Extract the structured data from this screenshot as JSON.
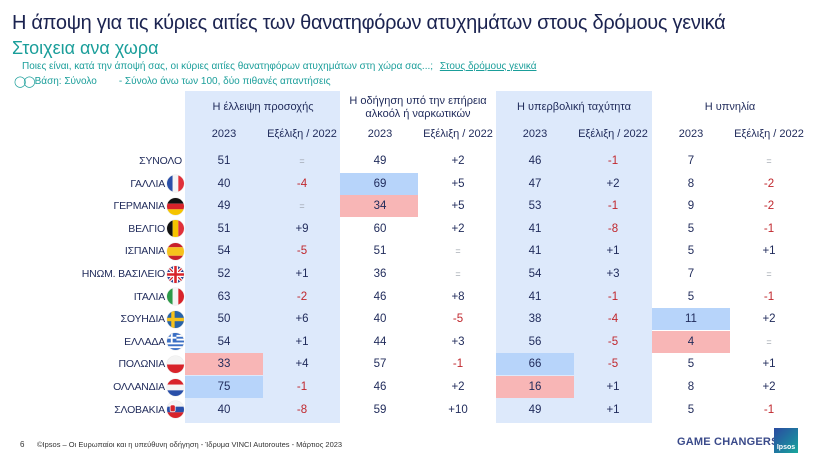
{
  "header": {
    "title": "Η άποψη για τις κύριες αιτίες των θανατηφόρων ατυχημάτων στους δρόμους γενικά",
    "subtitle": "Στοιχεια ανα χωρα",
    "question": "Ποιες είναι, κατά την άποψή σας, οι κύριες αιτίες θανατηφόρων ατυχημάτων στη χώρα σας...;",
    "question_link": "Στους δρόμους γενικά",
    "base_label": "Βάση: Σύνολο",
    "base_note": "- Σύνολο άνω των 100, δύο  πιθανές απαντήσεις",
    "base_icon": "people-icon"
  },
  "table": {
    "groups": [
      {
        "label": "Η έλλειψη προσοχής",
        "sub_year": "2023",
        "sub_change": "Εξέλιξη / 2022",
        "highlighted_band": true
      },
      {
        "label": "Η οδήγηση υπό την επήρεια αλκοόλ ή ναρκωτικών",
        "sub_year": "2023",
        "sub_change": "Εξέλιξη / 2022",
        "highlighted_band": false
      },
      {
        "label": "Η υπερβολική ταχύτητα",
        "sub_year": "2023",
        "sub_change": "Εξέλιξη / 2022",
        "highlighted_band": true
      },
      {
        "label": "Η υπνηλία",
        "sub_year": "2023",
        "sub_change": "Εξέλιξη / 2022",
        "highlighted_band": false
      }
    ],
    "rows": [
      {
        "country": "ΣΥΝΟΛΟ",
        "flag": "none",
        "values": [
          "51",
          "=",
          "49",
          "+2",
          "46",
          "-1",
          "7",
          "="
        ],
        "highlights": [
          null,
          null,
          null,
          null
        ]
      },
      {
        "country": "ΓΑΛΛΙΑ",
        "flag": "france-flag-icon",
        "values": [
          "40",
          "-4",
          "69",
          "+5",
          "47",
          "+2",
          "8",
          "-2"
        ],
        "highlights": [
          null,
          "high",
          null,
          null
        ]
      },
      {
        "country": "ΓΕΡΜΑΝΙΑ",
        "flag": "germany-flag-icon",
        "values": [
          "49",
          "=",
          "34",
          "+5",
          "53",
          "-1",
          "9",
          "-2"
        ],
        "highlights": [
          null,
          "low",
          null,
          null
        ]
      },
      {
        "country": "ΒΕΛΓΙΟ",
        "flag": "belgium-flag-icon",
        "values": [
          "51",
          "+9",
          "60",
          "+2",
          "41",
          "-8",
          "5",
          "-1"
        ],
        "highlights": [
          null,
          null,
          null,
          null
        ]
      },
      {
        "country": "ΙΣΠΑΝΙΑ",
        "flag": "spain-flag-icon",
        "values": [
          "54",
          "-5",
          "51",
          "=",
          "41",
          "+1",
          "5",
          "+1"
        ],
        "highlights": [
          null,
          null,
          null,
          null
        ]
      },
      {
        "country": "ΗΝΩΜ. ΒΑΣΙΛΕΙΟ",
        "flag": "uk-flag-icon",
        "values": [
          "52",
          "+1",
          "36",
          "=",
          "54",
          "+3",
          "7",
          "="
        ],
        "highlights": [
          null,
          null,
          null,
          null
        ]
      },
      {
        "country": "ΙΤΑΛΙΑ",
        "flag": "italy-flag-icon",
        "values": [
          "63",
          "-2",
          "46",
          "+8",
          "41",
          "-1",
          "5",
          "-1"
        ],
        "highlights": [
          null,
          null,
          null,
          null
        ]
      },
      {
        "country": "ΣΟΥΗΔΙΑ",
        "flag": "sweden-flag-icon",
        "values": [
          "50",
          "+6",
          "40",
          "-5",
          "38",
          "-4",
          "11",
          "+2"
        ],
        "highlights": [
          null,
          null,
          null,
          "high"
        ]
      },
      {
        "country": "ΕΛΛΑΔΑ",
        "flag": "greece-flag-icon",
        "values": [
          "54",
          "+1",
          "44",
          "+3",
          "56",
          "-5",
          "4",
          "="
        ],
        "highlights": [
          null,
          null,
          null,
          "low"
        ]
      },
      {
        "country": "ΠΟΛΩΝΙΑ",
        "flag": "poland-flag-icon",
        "values": [
          "33",
          "+4",
          "57",
          "-1",
          "66",
          "-5",
          "5",
          "+1"
        ],
        "highlights": [
          "low",
          null,
          "high",
          null
        ]
      },
      {
        "country": "ΟΛΛΑΝΔΙΑ",
        "flag": "netherlands-flag-icon",
        "values": [
          "75",
          "-1",
          "46",
          "+2",
          "16",
          "+1",
          "8",
          "+2"
        ],
        "highlights": [
          "high",
          null,
          "low",
          null
        ]
      },
      {
        "country": "ΣΛΟΒΑΚΙΑ",
        "flag": "slovakia-flag-icon",
        "values": [
          "40",
          "-8",
          "59",
          "+10",
          "49",
          "+1",
          "5",
          "-1"
        ],
        "highlights": [
          null,
          null,
          null,
          null
        ]
      }
    ]
  },
  "colors": {
    "title": "#1b2350",
    "accent": "#1a9e9a",
    "band": "#dde9fb",
    "highlight_high": "#b7d4fa",
    "highlight_low": "#f8b6b6",
    "negative": "#c0272d",
    "neutral": "#9aa0aa"
  },
  "footer": {
    "page_number": "6",
    "source": "©Ipsos – Οι Ευρωπαίοι και η υπεύθυνη οδήγηση - Ίδρυμα VINCI Autoroutes - Μάρτιος  2023",
    "tagline": "GAME CHANGERS",
    "logo_text": "Ipsos"
  }
}
